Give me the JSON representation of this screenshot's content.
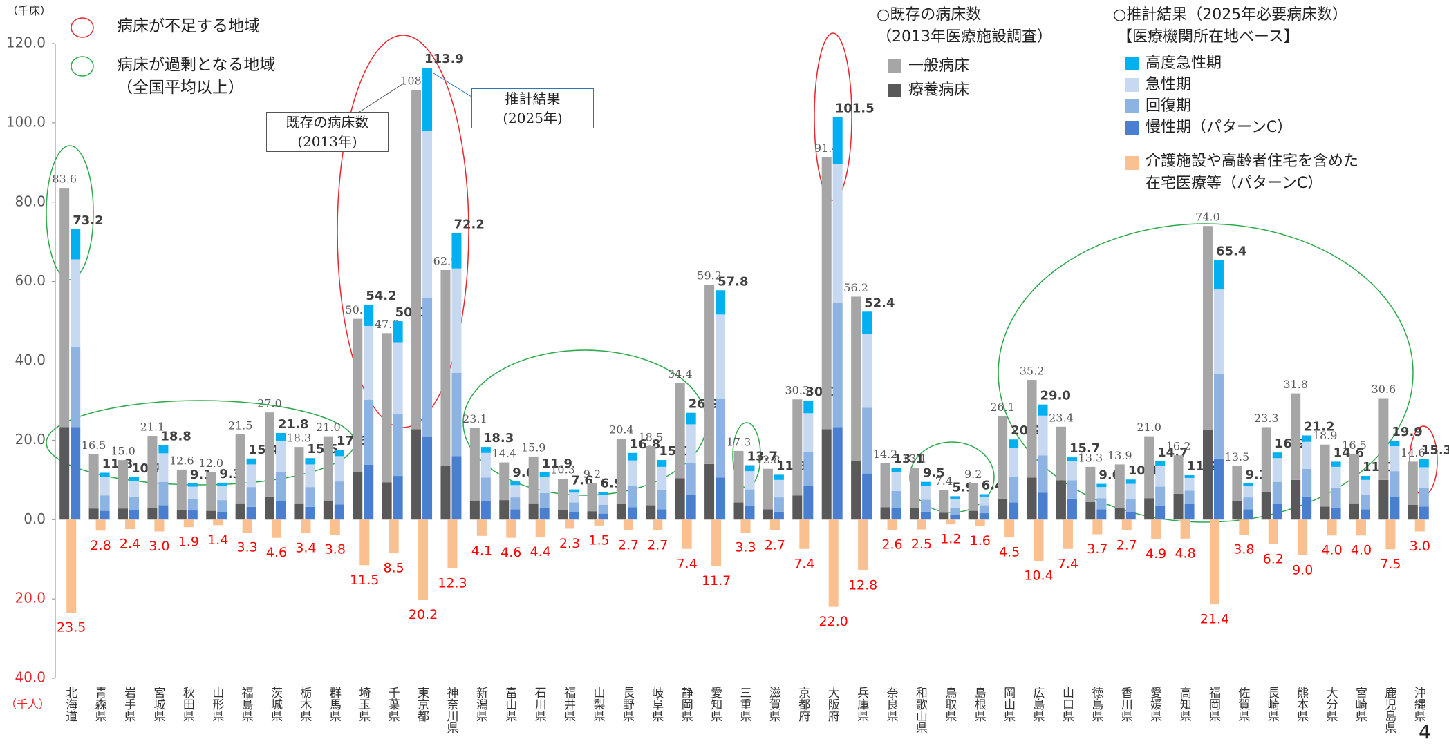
{
  "chart_data": {
    "type": "bar",
    "y_unit": "（千床）",
    "y_neg_unit": "（千人）",
    "page_number": "4",
    "regions": [
      {
        "label": "病床が不足する地域",
        "color": "#e8262b"
      },
      {
        "label": "病床が過剰となる地域\n（全国平均以上）",
        "color": "#2ca94b"
      }
    ],
    "annotations": [
      {
        "text": "既存の病床数\n(2013年)"
      },
      {
        "text": "推計結果\n(2025年)"
      }
    ],
    "categories": [
      "北海道",
      "青森県",
      "岩手県",
      "宮城県",
      "秋田県",
      "山形県",
      "福島県",
      "茨城県",
      "栃木県",
      "群馬県",
      "埼玉県",
      "千葉県",
      "東京都",
      "神奈川県",
      "新潟県",
      "富山県",
      "石川県",
      "福井県",
      "山梨県",
      "長野県",
      "岐阜県",
      "静岡県",
      "愛知県",
      "三重県",
      "滋賀県",
      "京都府",
      "大阪府",
      "兵庫県",
      "奈良県",
      "和歌山県",
      "鳥取県",
      "島根県",
      "岡山県",
      "広島県",
      "山口県",
      "徳島県",
      "香川県",
      "愛媛県",
      "高知県",
      "福岡県",
      "佐賀県",
      "長崎県",
      "熊本県",
      "大分県",
      "宮崎県",
      "鹿児島県",
      "沖縄県"
    ],
    "ylim": [
      -40,
      120
    ],
    "yticks": [
      {
        "value": -40,
        "label": "40.0"
      },
      {
        "value": -20,
        "label": "20.0"
      },
      {
        "value": 0,
        "label": "0.0"
      },
      {
        "value": 20,
        "label": "20.0"
      },
      {
        "value": 40,
        "label": "40.0"
      },
      {
        "value": 60,
        "label": "60.0"
      },
      {
        "value": 80,
        "label": "80.0"
      },
      {
        "value": 100,
        "label": "100.0"
      },
      {
        "value": 120,
        "label": "120.0"
      }
    ],
    "grid": false,
    "existing": {
      "title": "○既存の病床数\n（2013年医療施設調査）",
      "series": [
        {
          "name": "療養病床",
          "color": "#595959",
          "values": [
            23.3,
            2.8,
            2.8,
            3.0,
            2.4,
            2.2,
            4.1,
            5.8,
            4.1,
            4.8,
            12.0,
            9.4,
            22.8,
            13.5,
            4.8,
            4.9,
            4.1,
            2.4,
            2.1,
            4.0,
            3.6,
            10.4,
            14.0,
            4.3,
            2.6,
            6.1,
            22.8,
            14.7,
            3.1,
            2.9,
            1.7,
            2.2,
            5.3,
            10.6,
            9.9,
            4.4,
            3.0,
            5.4,
            6.5,
            22.5,
            4.6,
            6.9,
            10.0,
            3.3,
            4.1,
            10.0,
            3.7
          ]
        },
        {
          "name": "一般病床",
          "color": "#a6a6a6",
          "values": [
            60.3,
            13.7,
            12.2,
            18.1,
            10.2,
            9.8,
            17.4,
            21.2,
            14.2,
            16.2,
            38.6,
            37.6,
            85.5,
            49.4,
            18.3,
            9.5,
            11.8,
            7.9,
            7.1,
            16.4,
            14.9,
            24.0,
            45.2,
            13.0,
            10.2,
            24.2,
            68.6,
            41.5,
            11.1,
            10.2,
            5.7,
            7.0,
            20.8,
            24.6,
            13.5,
            8.9,
            10.9,
            15.6,
            9.7,
            51.5,
            8.9,
            16.4,
            21.8,
            15.6,
            12.4,
            20.6,
            10.9
          ]
        }
      ],
      "total_labels": [
        "83.6",
        "16.5",
        "15.0",
        "21.1",
        "12.6",
        "12.0",
        "21.5",
        "27.0",
        "18.3",
        "21.0",
        "50.6",
        "47.0",
        "108.3",
        "62.9",
        "23.1",
        "14.4",
        "15.9",
        "10.3",
        "9.2",
        "20.4",
        "18.5",
        "34.4",
        "59.2",
        "17.3",
        "12.8",
        "30.3",
        "91.4",
        "56.2",
        "14.2",
        "13.1",
        "7.4",
        "9.2",
        "26.1",
        "35.2",
        "23.4",
        "13.3",
        "13.9",
        "21.0",
        "16.2",
        "74.0",
        "13.5",
        "23.3",
        "31.8",
        "18.9",
        "16.5",
        "30.6",
        "14.6"
      ]
    },
    "estimated": {
      "title": "○推計結果（2025年必要病床数）",
      "subtitle": "【医療機関所在地ベース】",
      "series": [
        {
          "name": "慢性期（パターンC）",
          "color": "#4a7fcf",
          "values": [
            23.3,
            2.2,
            2.4,
            3.6,
            2.3,
            1.9,
            3.2,
            4.8,
            3.2,
            3.8,
            13.8,
            11.0,
            20.9,
            16.0,
            4.8,
            2.6,
            3.0,
            1.9,
            1.5,
            3.1,
            2.6,
            6.3,
            10.6,
            3.4,
            2.0,
            8.4,
            23.3,
            11.6,
            3.0,
            2.0,
            1.2,
            1.6,
            4.3,
            6.8,
            5.3,
            2.6,
            1.9,
            3.5,
            3.9,
            15.4,
            2.6,
            3.9,
            5.8,
            2.9,
            2.6,
            5.7,
            3.3
          ]
        },
        {
          "name": "回復期",
          "color": "#8db3e2",
          "values": [
            20.2,
            3.9,
            3.4,
            5.9,
            2.9,
            3.0,
            5.0,
            7.2,
            5.0,
            5.8,
            16.4,
            15.5,
            34.9,
            21.0,
            5.8,
            3.0,
            3.7,
            2.4,
            2.2,
            5.4,
            4.8,
            8.0,
            19.8,
            4.2,
            3.6,
            8.6,
            31.4,
            16.6,
            4.2,
            3.0,
            1.8,
            2.0,
            6.4,
            9.4,
            4.6,
            2.8,
            3.3,
            4.8,
            3.4,
            21.3,
            3.0,
            5.6,
            7.0,
            5.1,
            3.6,
            6.5,
            4.8
          ]
        },
        {
          "name": "急性期",
          "color": "#c6d9f1",
          "values": [
            22.1,
            4.6,
            3.9,
            7.2,
            3.1,
            3.5,
            5.7,
            7.9,
            5.7,
            6.4,
            18.6,
            18.2,
            42.2,
            26.3,
            6.2,
            3.1,
            4.0,
            2.5,
            2.5,
            6.4,
            5.9,
            9.7,
            21.3,
            4.6,
            4.4,
            9.8,
            35.0,
            18.5,
            4.7,
            3.5,
            2.2,
            2.2,
            7.4,
            10.0,
            4.8,
            2.8,
            3.8,
            5.2,
            3.2,
            21.3,
            2.8,
            6.0,
            6.8,
            5.3,
            3.8,
            6.3,
            5.1
          ]
        },
        {
          "name": "高度急性期",
          "color": "#00b0f0",
          "values": [
            7.6,
            1.1,
            1.0,
            2.1,
            0.8,
            0.9,
            1.5,
            1.9,
            1.6,
            1.6,
            5.4,
            5.3,
            15.9,
            8.9,
            1.5,
            0.9,
            1.2,
            0.8,
            0.7,
            1.9,
            1.7,
            2.9,
            6.1,
            1.5,
            1.3,
            3.2,
            11.8,
            5.7,
            1.2,
            1.0,
            0.7,
            0.6,
            2.1,
            2.8,
            1.0,
            0.8,
            1.1,
            1.2,
            0.7,
            7.4,
            0.7,
            1.4,
            1.6,
            1.3,
            1.0,
            1.4,
            2.1
          ]
        }
      ],
      "total_labels": [
        "73.2",
        "11.8",
        "10.7",
        "18.8",
        "9.1",
        "9.3",
        "15.4",
        "21.8",
        "15.5",
        "17.6",
        "54.2",
        "50.0",
        "113.9",
        "72.2",
        "18.3",
        "9.6",
        "11.9",
        "7.6",
        "6.9",
        "16.8",
        "15.0",
        "26.9",
        "57.8",
        "13.7",
        "11.3",
        "30.0",
        "101.5",
        "52.4",
        "13.1",
        "9.5",
        "5.9",
        "6.4",
        "20.2",
        "29.0",
        "15.7",
        "9.0",
        "10.1",
        "14.7",
        "11.2",
        "65.4",
        "9.1",
        "16.9",
        "21.2",
        "14.6",
        "11.0",
        "19.9",
        "15.3"
      ]
    },
    "home_care": {
      "name": "介護施設や高齢者住宅を含めた\n在宅医療等（パターンC）",
      "color": "#fac090",
      "label_color": "#ff0000",
      "values": [
        -23.5,
        -2.8,
        -2.4,
        -3.0,
        -1.9,
        -1.4,
        -3.3,
        -4.6,
        -3.4,
        -3.8,
        -11.5,
        -8.5,
        -20.2,
        -12.3,
        -4.1,
        -4.6,
        -4.4,
        -2.3,
        -1.5,
        -2.7,
        -2.7,
        -7.4,
        -11.7,
        -3.3,
        -2.7,
        -7.4,
        -22.0,
        -12.8,
        -2.6,
        -2.5,
        -1.2,
        -1.6,
        -4.5,
        -10.4,
        -7.4,
        -3.7,
        -2.7,
        -4.9,
        -4.8,
        -21.4,
        -3.8,
        -6.2,
        -9.0,
        -4.0,
        -4.0,
        -7.5,
        -3.0
      ],
      "value_labels": [
        "23.5",
        "2.8",
        "2.4",
        "3.0",
        "1.9",
        "1.4",
        "3.3",
        "4.6",
        "3.4",
        "3.8",
        "11.5",
        "8.5",
        "20.2",
        "12.3",
        "4.1",
        "4.6",
        "4.4",
        "2.3",
        "1.5",
        "2.7",
        "2.7",
        "7.4",
        "11.7",
        "3.3",
        "2.7",
        "7.4",
        "22.0",
        "12.8",
        "2.6",
        "2.5",
        "1.2",
        "1.6",
        "4.5",
        "10.4",
        "7.4",
        "3.7",
        "2.7",
        "4.9",
        "4.8",
        "21.4",
        "3.8",
        "6.2",
        "9.0",
        "4.0",
        "4.0",
        "7.5",
        "3.0"
      ]
    }
  }
}
